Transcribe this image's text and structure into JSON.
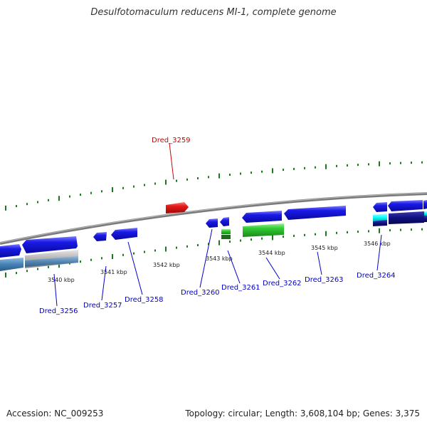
{
  "title": "Desulfotomaculum reducens MI-1, complete genome",
  "footer": {
    "accession": "Accession: NC_009253",
    "summary": "Topology: circular; Length: 3,608,104 bp; Genes: 3,375"
  },
  "kbp_ticks": [
    "3540 kbp",
    "3541 kbp",
    "3542 kbp",
    "3543 kbp",
    "3544 kbp",
    "3545 kbp",
    "3546 kbp"
  ],
  "gene_labels": [
    {
      "name": "Dred_3256",
      "color": "#0000cc"
    },
    {
      "name": "Dred_3257",
      "color": "#0000cc"
    },
    {
      "name": "Dred_3258",
      "color": "#0000cc"
    },
    {
      "name": "Dred_3259",
      "color": "#cc0000"
    },
    {
      "name": "Dred_3260",
      "color": "#0000cc"
    },
    {
      "name": "Dred_3261",
      "color": "#0000cc"
    },
    {
      "name": "Dred_3262",
      "color": "#0000cc"
    },
    {
      "name": "Dred_3263",
      "color": "#0000cc"
    },
    {
      "name": "Dred_3264",
      "color": "#0000cc"
    }
  ],
  "colors": {
    "backbone": "#808080",
    "tick_green": "#1a7a1a",
    "gene_blue": "#1a1ae6",
    "gene_red": "#e61a1a",
    "gene_green": "#33cc33",
    "gene_cyan": "#00ffff",
    "gene_navy": "#101080",
    "gene_steel": "#4682b4",
    "gene_gray": "#aaaaaa"
  }
}
